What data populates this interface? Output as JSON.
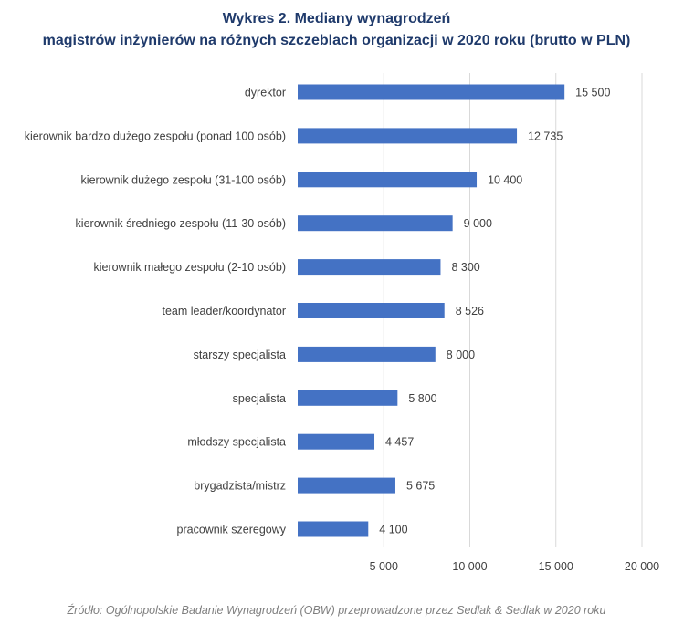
{
  "title_line1": "Wykres 2. Mediany wynagrodzeń",
  "title_line2": "magistrów inżynierów na różnych szczeblach organizacji w 2020 roku (brutto w PLN)",
  "source": "Źródło: Ogólnopolskie Badanie Wynagrodzeń (OBW) przeprowadzone przez Sedlak & Sedlak w 2020 roku",
  "colors": {
    "bar": "#4472c4",
    "grid": "#d9d9d9",
    "title": "#1f3a6b"
  },
  "chart_data": {
    "type": "bar",
    "orientation": "horizontal",
    "title": "Wykres 2. Mediany wynagrodzeń magistrów inżynierów na różnych szczeblach organizacji w 2020 roku (brutto w PLN)",
    "categories": [
      "dyrektor",
      "kierownik bardzo dużego zespołu (ponad 100 osób)",
      "kierownik dużego zespołu (31-100 osób)",
      "kierownik średniego zespołu (11-30 osób)",
      "kierownik małego zespołu (2-10 osób)",
      "team leader/koordynator",
      "starszy specjalista",
      "specjalista",
      "młodszy specjalista",
      "brygadzista/mistrz",
      "pracownik szeregowy"
    ],
    "values": [
      15500,
      12735,
      10400,
      9000,
      8300,
      8526,
      8000,
      5800,
      4457,
      5675,
      4100
    ],
    "value_labels": [
      "15 500",
      "12 735",
      "10 400",
      "9 000",
      "8 300",
      "8 526",
      "8 000",
      "5 800",
      "4 457",
      "5 675",
      "4 100"
    ],
    "xlim": [
      0,
      20000
    ],
    "xticks": [
      0,
      5000,
      10000,
      15000,
      20000
    ],
    "xtick_labels": [
      "-",
      "5 000",
      "10 000",
      "15 000",
      "20 000"
    ],
    "grid": true
  }
}
